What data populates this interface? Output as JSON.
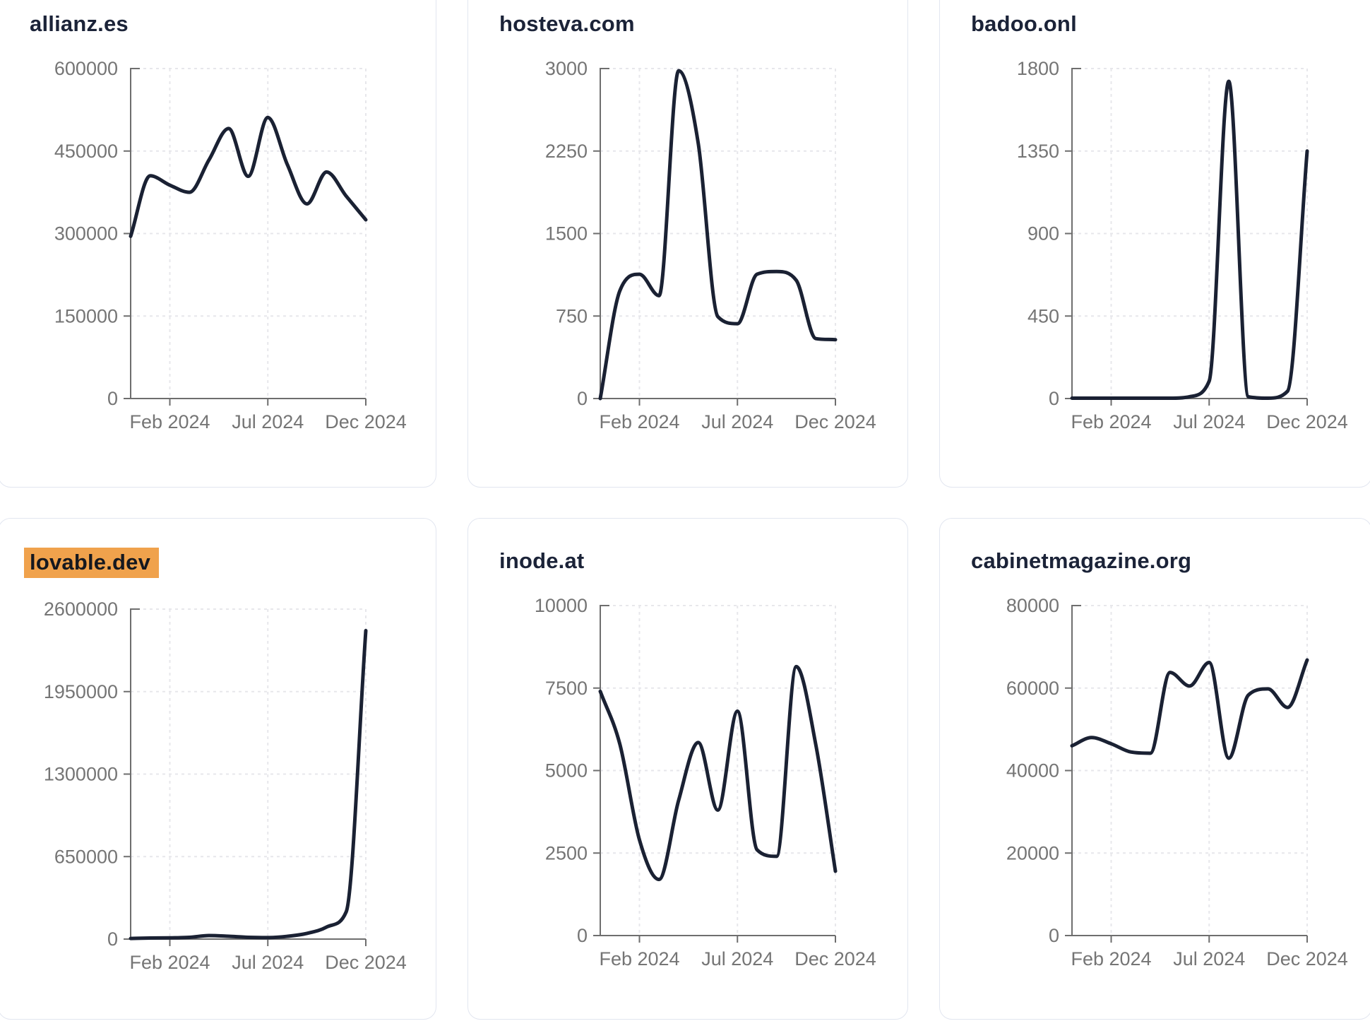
{
  "style": {
    "line_color": "#1a2133",
    "axis_color": "#6e6e6e",
    "tick_label_color": "#757575",
    "grid_color": "#e7e7eb",
    "title_color": "#1b2338",
    "highlight_background": "#f0a24c",
    "highlight_text_color": "#15181f",
    "card_border_color": "#e2e6f0",
    "card_background": "#ffffff",
    "page_background": "#ffffff"
  },
  "chart_data": [
    {
      "type": "line",
      "title": "allianz.es",
      "title_highlight": false,
      "x": [
        "Dec 2023",
        "Jan 2024",
        "Feb 2024",
        "Mar 2024",
        "Apr 2024",
        "May 2024",
        "Jun 2024",
        "Jul 2024",
        "Aug 2024",
        "Sep 2024",
        "Oct 2024",
        "Nov 2024",
        "Dec 2024"
      ],
      "values": [
        295000,
        405000,
        388000,
        375000,
        434000,
        491000,
        404000,
        511000,
        425000,
        354000,
        412000,
        368000,
        325000
      ],
      "ylim": [
        0,
        600000
      ],
      "y_ticks": [
        0,
        150000,
        300000,
        450000,
        600000
      ],
      "x_tick_labels": [
        "Feb 2024",
        "Jul 2024",
        "Dec 2024"
      ],
      "x_tick_indices": [
        2,
        7,
        12
      ],
      "grid": true,
      "legend": "none"
    },
    {
      "type": "line",
      "title": "hosteva.com",
      "title_highlight": false,
      "x": [
        "Dec 2023",
        "Jan 2024",
        "Feb 2024",
        "Mar 2024",
        "Apr 2024",
        "May 2024",
        "Jun 2024",
        "Jul 2024",
        "Aug 2024",
        "Sep 2024",
        "Oct 2024",
        "Nov 2024",
        "Dec 2024"
      ],
      "values": [
        0,
        980,
        1130,
        935,
        2980,
        2320,
        745,
        680,
        1130,
        1155,
        1075,
        545,
        535
      ],
      "ylim": [
        0,
        3000
      ],
      "y_ticks": [
        0,
        750,
        1500,
        2250,
        3000
      ],
      "x_tick_labels": [
        "Feb 2024",
        "Jul 2024",
        "Dec 2024"
      ],
      "x_tick_indices": [
        2,
        7,
        12
      ],
      "grid": true,
      "legend": "none"
    },
    {
      "type": "line",
      "title": "badoo.onl",
      "title_highlight": false,
      "x": [
        "Dec 2023",
        "Jan 2024",
        "Feb 2024",
        "Mar 2024",
        "Apr 2024",
        "May 2024",
        "Jun 2024",
        "Jul 2024",
        "Aug 2024",
        "Sep 2024",
        "Oct 2024",
        "Nov 2024",
        "Dec 2024"
      ],
      "values": [
        2,
        2,
        2,
        2,
        2,
        2,
        10,
        95,
        1730,
        10,
        2,
        40,
        1350
      ],
      "ylim": [
        0,
        1800
      ],
      "y_ticks": [
        0,
        450,
        900,
        1350,
        1800
      ],
      "x_tick_labels": [
        "Feb 2024",
        "Jul 2024",
        "Dec 2024"
      ],
      "x_tick_indices": [
        2,
        7,
        12
      ],
      "grid": true,
      "legend": "none"
    },
    {
      "type": "line",
      "title": "lovable.dev",
      "title_highlight": true,
      "x": [
        "Dec 2023",
        "Jan 2024",
        "Feb 2024",
        "Mar 2024",
        "Apr 2024",
        "May 2024",
        "Jun 2024",
        "Jul 2024",
        "Aug 2024",
        "Sep 2024",
        "Oct 2024",
        "Nov 2024",
        "Dec 2024"
      ],
      "values": [
        5000,
        8000,
        10000,
        14000,
        28000,
        22000,
        14000,
        12000,
        22000,
        45000,
        95000,
        215000,
        2430000
      ],
      "ylim": [
        0,
        2600000
      ],
      "y_ticks": [
        0,
        650000,
        1300000,
        1950000,
        2600000
      ],
      "x_tick_labels": [
        "Feb 2024",
        "Jul 2024",
        "Dec 2024"
      ],
      "x_tick_indices": [
        2,
        7,
        12
      ],
      "grid": true,
      "legend": "none"
    },
    {
      "type": "line",
      "title": "inode.at",
      "title_highlight": false,
      "x": [
        "Dec 2023",
        "Jan 2024",
        "Feb 2024",
        "Mar 2024",
        "Apr 2024",
        "May 2024",
        "Jun 2024",
        "Jul 2024",
        "Aug 2024",
        "Sep 2024",
        "Oct 2024",
        "Nov 2024",
        "Dec 2024"
      ],
      "values": [
        7400,
        5800,
        2900,
        1700,
        4100,
        5850,
        3800,
        6800,
        2600,
        2400,
        8150,
        5780,
        1950
      ],
      "ylim": [
        0,
        10000
      ],
      "y_ticks": [
        0,
        2500,
        5000,
        7500,
        10000
      ],
      "x_tick_labels": [
        "Feb 2024",
        "Jul 2024",
        "Dec 2024"
      ],
      "x_tick_indices": [
        2,
        7,
        12
      ],
      "grid": true,
      "legend": "none"
    },
    {
      "type": "line",
      "title": "cabinetmagazine.org",
      "title_highlight": false,
      "x": [
        "Dec 2023",
        "Jan 2024",
        "Feb 2024",
        "Mar 2024",
        "Apr 2024",
        "May 2024",
        "Jun 2024",
        "Jul 2024",
        "Aug 2024",
        "Sep 2024",
        "Oct 2024",
        "Nov 2024",
        "Dec 2024"
      ],
      "values": [
        46000,
        48000,
        46500,
        44500,
        44200,
        63800,
        60500,
        66200,
        43000,
        58300,
        59800,
        55300,
        66800
      ],
      "ylim": [
        0,
        80000
      ],
      "y_ticks": [
        0,
        20000,
        40000,
        60000,
        80000
      ],
      "x_tick_labels": [
        "Feb 2024",
        "Jul 2024",
        "Dec 2024"
      ],
      "x_tick_indices": [
        2,
        7,
        12
      ],
      "grid": true,
      "legend": "none"
    }
  ]
}
